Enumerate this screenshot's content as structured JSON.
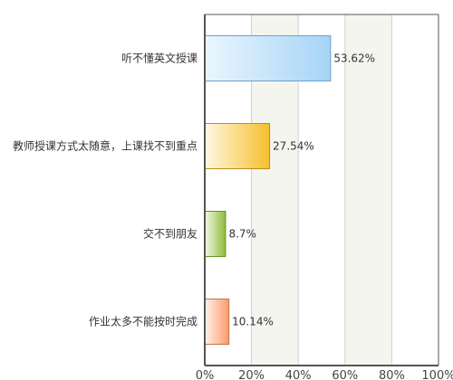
{
  "chart_data": {
    "type": "bar",
    "orientation": "horizontal",
    "categories": [
      "听不懂英文授课",
      "教师授课方式太随意，上课找不到重点",
      "交不到朋友",
      "作业太多不能按时完成"
    ],
    "values": [
      53.62,
      27.54,
      8.7,
      10.14
    ],
    "value_labels": [
      "53.62%",
      "27.54%",
      "8.7%",
      "10.14%"
    ],
    "xlim": [
      0,
      100
    ],
    "xticks": [
      0,
      20,
      40,
      60,
      80,
      100
    ],
    "xtick_labels": [
      "0%",
      "20%",
      "40%",
      "60%",
      "80%",
      "100%"
    ],
    "title": "",
    "xlabel": "",
    "ylabel": "",
    "grid": true,
    "legend": "none",
    "bar_colors": [
      {
        "light": "#eaf6fe",
        "dark": "#a6d4f6",
        "border": "#6e9ec8"
      },
      {
        "light": "#fff8e2",
        "dark": "#f5c02c",
        "border": "#b88e20"
      },
      {
        "light": "#f1f8e2",
        "dark": "#8cbd3a",
        "border": "#6b9128"
      },
      {
        "light": "#fff1ea",
        "dark": "#fb9a6a",
        "border": "#c2714b"
      }
    ],
    "band_colors": [
      "#ffffff",
      "#f5f5f0"
    ],
    "grid_color": "#cfcfcf",
    "axis_color": "#555555"
  }
}
